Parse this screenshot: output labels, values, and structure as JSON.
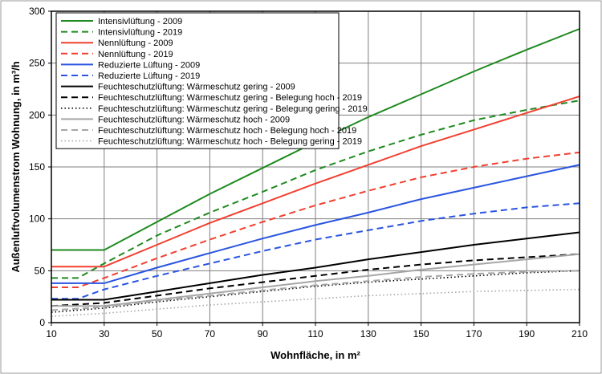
{
  "chart_data": {
    "type": "line",
    "title": "",
    "xlabel": "Wohnfläche, in m²",
    "ylabel": "Außenluftvolumenstrom Wohnung, in m³/h",
    "xlim": [
      10,
      210
    ],
    "ylim": [
      0,
      300
    ],
    "x_ticks": [
      10,
      30,
      50,
      70,
      90,
      110,
      130,
      150,
      170,
      190,
      210
    ],
    "y_ticks": [
      0,
      50,
      100,
      150,
      200,
      250,
      300
    ],
    "x_tick_labels": [
      "10",
      "30",
      "50",
      "70",
      "90",
      "110",
      "130",
      "150",
      "170",
      "190",
      "210"
    ],
    "y_tick_labels": [
      "0",
      "50",
      "100",
      "150",
      "200",
      "250",
      "300"
    ],
    "grid": true,
    "legend_position": "top-left",
    "series": [
      {
        "name": "Intensivlüftung - 2009",
        "color": "#1f8a1f",
        "dash": "solid",
        "points": [
          [
            10,
            70
          ],
          [
            30,
            70
          ],
          [
            50,
            97
          ],
          [
            70,
            124
          ],
          [
            90,
            149
          ],
          [
            110,
            174
          ],
          [
            130,
            198
          ],
          [
            150,
            220
          ],
          [
            170,
            242
          ],
          [
            190,
            263
          ],
          [
            210,
            283
          ]
        ]
      },
      {
        "name": "Intensivlüftung - 2019",
        "color": "#1f8a1f",
        "dash": "dashed",
        "points": [
          [
            10,
            43
          ],
          [
            20,
            43
          ],
          [
            30,
            57
          ],
          [
            50,
            84
          ],
          [
            70,
            106
          ],
          [
            90,
            126
          ],
          [
            110,
            147
          ],
          [
            130,
            165
          ],
          [
            150,
            181
          ],
          [
            170,
            195
          ],
          [
            190,
            205
          ],
          [
            210,
            214
          ]
        ]
      },
      {
        "name": "Nennlüftung - 2009",
        "color": "#f04030",
        "dash": "solid",
        "points": [
          [
            10,
            54
          ],
          [
            30,
            54
          ],
          [
            50,
            75
          ],
          [
            70,
            96
          ],
          [
            90,
            115
          ],
          [
            110,
            134
          ],
          [
            130,
            152
          ],
          [
            150,
            170
          ],
          [
            170,
            186
          ],
          [
            190,
            202
          ],
          [
            210,
            218
          ]
        ]
      },
      {
        "name": "Nennlüftung - 2019",
        "color": "#f04030",
        "dash": "dashed",
        "points": [
          [
            10,
            34
          ],
          [
            20,
            34
          ],
          [
            30,
            43
          ],
          [
            50,
            62
          ],
          [
            70,
            80
          ],
          [
            90,
            97
          ],
          [
            110,
            113
          ],
          [
            130,
            127
          ],
          [
            150,
            140
          ],
          [
            170,
            150
          ],
          [
            190,
            158
          ],
          [
            210,
            164
          ]
        ]
      },
      {
        "name": "Reduzierte Lüftung - 2009",
        "color": "#2a55e0",
        "dash": "solid",
        "points": [
          [
            10,
            38
          ],
          [
            30,
            38
          ],
          [
            50,
            53
          ],
          [
            70,
            67
          ],
          [
            90,
            81
          ],
          [
            110,
            94
          ],
          [
            130,
            106
          ],
          [
            150,
            119
          ],
          [
            170,
            130
          ],
          [
            190,
            141
          ],
          [
            210,
            152
          ]
        ]
      },
      {
        "name": "Reduzierte Lüftung - 2019",
        "color": "#2a55e0",
        "dash": "dashed",
        "points": [
          [
            10,
            23
          ],
          [
            20,
            23
          ],
          [
            30,
            32
          ],
          [
            50,
            45
          ],
          [
            70,
            57
          ],
          [
            90,
            69
          ],
          [
            110,
            80
          ],
          [
            130,
            89
          ],
          [
            150,
            98
          ],
          [
            170,
            105
          ],
          [
            190,
            111
          ],
          [
            210,
            115
          ]
        ]
      },
      {
        "name": "Feuchteschutzlüftung: Wärmeschutz gering - 2009",
        "color": "#000000",
        "dash": "solid",
        "points": [
          [
            10,
            22
          ],
          [
            30,
            22
          ],
          [
            50,
            30
          ],
          [
            70,
            38
          ],
          [
            90,
            46
          ],
          [
            110,
            53
          ],
          [
            130,
            61
          ],
          [
            150,
            68
          ],
          [
            170,
            75
          ],
          [
            190,
            81
          ],
          [
            210,
            87
          ]
        ]
      },
      {
        "name": "Feuchteschutzlüftung: Wärmeschutz gering - Belegung hoch - 2019",
        "color": "#000000",
        "dash": "dashed",
        "points": [
          [
            10,
            16
          ],
          [
            30,
            19
          ],
          [
            50,
            26
          ],
          [
            70,
            33
          ],
          [
            90,
            39
          ],
          [
            110,
            45
          ],
          [
            130,
            51
          ],
          [
            150,
            56
          ],
          [
            170,
            60
          ],
          [
            190,
            63
          ],
          [
            210,
            66
          ]
        ]
      },
      {
        "name": "Feuchteschutzlüftung: Wärmeschutz gering - Belegung gering - 2019",
        "color": "#000000",
        "dash": "dotted",
        "points": [
          [
            10,
            10
          ],
          [
            30,
            14
          ],
          [
            50,
            20
          ],
          [
            70,
            25
          ],
          [
            90,
            30
          ],
          [
            110,
            35
          ],
          [
            130,
            39
          ],
          [
            150,
            42
          ],
          [
            170,
            45
          ],
          [
            190,
            48
          ],
          [
            210,
            50
          ]
        ]
      },
      {
        "name": "Feuchteschutzlüftung: Wärmeschutz hoch - 2009",
        "color": "#a6a6a6",
        "dash": "solid",
        "points": [
          [
            10,
            16
          ],
          [
            30,
            16
          ],
          [
            50,
            22
          ],
          [
            70,
            28
          ],
          [
            90,
            34
          ],
          [
            110,
            40
          ],
          [
            130,
            45
          ],
          [
            150,
            51
          ],
          [
            170,
            56
          ],
          [
            190,
            61
          ],
          [
            210,
            66
          ]
        ]
      },
      {
        "name": "Feuchteschutzlüftung: Wärmeschutz hoch - Belegung hoch - 2019",
        "color": "#a6a6a6",
        "dash": "dashed",
        "points": [
          [
            10,
            12
          ],
          [
            30,
            15
          ],
          [
            50,
            21
          ],
          [
            70,
            26
          ],
          [
            90,
            31
          ],
          [
            110,
            36
          ],
          [
            130,
            40
          ],
          [
            150,
            44
          ],
          [
            170,
            47
          ],
          [
            190,
            49
          ],
          [
            210,
            50
          ]
        ]
      },
      {
        "name": "Feuchteschutzlüftung: Wärmeschutz hoch - Belegung gering - 2019",
        "color": "#a6a6a6",
        "dash": "dotted",
        "points": [
          [
            10,
            6
          ],
          [
            30,
            9
          ],
          [
            50,
            13
          ],
          [
            70,
            17
          ],
          [
            90,
            20
          ],
          [
            110,
            23
          ],
          [
            130,
            26
          ],
          [
            150,
            28
          ],
          [
            170,
            30
          ],
          [
            190,
            31
          ],
          [
            210,
            32
          ]
        ]
      }
    ]
  }
}
